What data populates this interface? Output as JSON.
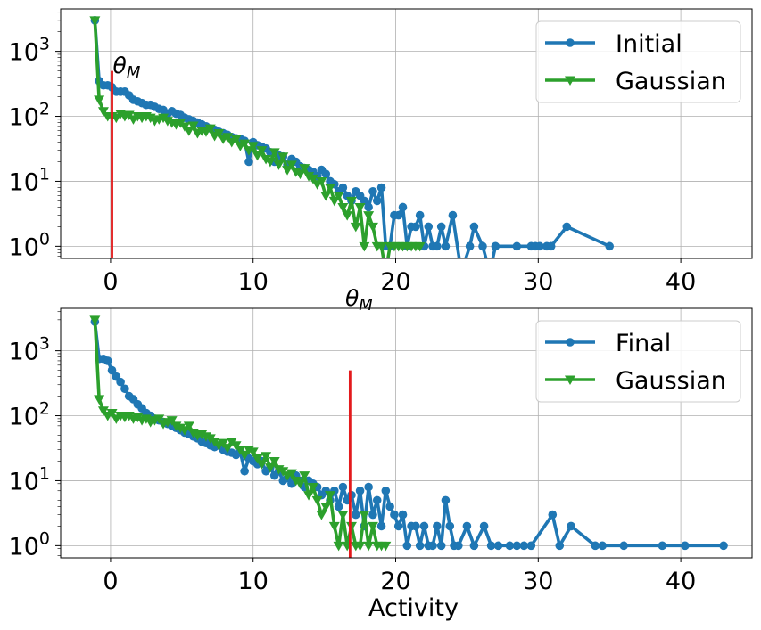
{
  "chart_data": [
    {
      "type": "line",
      "panel": "top",
      "xlabel": "",
      "ylabel": "",
      "yscale": "log",
      "xlim": [
        -3.5,
        45
      ],
      "ylim": [
        0.65,
        4500
      ],
      "xticks": [
        0,
        10,
        20,
        30,
        40
      ],
      "xtick_labels": [
        "0",
        "10",
        "20",
        "30",
        "40"
      ],
      "yticks": [
        1,
        10,
        100,
        1000
      ],
      "ytick_base": "10",
      "ytick_exponents": [
        "0",
        "1",
        "2",
        "3"
      ],
      "grid": true,
      "legend_position": "top-right",
      "vline": {
        "x": 0.1,
        "y_max": 500,
        "color": "#e31a1c",
        "label_base": "θ",
        "label_sub": "M"
      },
      "series": [
        {
          "name": "Initial",
          "color": "#1f77b4",
          "marker": "circle",
          "x": [
            -1.1,
            -0.8,
            -0.5,
            -0.2,
            0.1,
            0.4,
            0.7,
            1.0,
            1.3,
            1.6,
            1.9,
            2.2,
            2.5,
            2.8,
            3.1,
            3.4,
            3.7,
            4.0,
            4.3,
            4.6,
            4.9,
            5.2,
            5.5,
            5.8,
            6.1,
            6.4,
            6.7,
            7.0,
            7.3,
            7.6,
            7.9,
            8.2,
            8.5,
            8.8,
            9.1,
            9.4,
            9.7,
            10.0,
            10.3,
            10.6,
            10.9,
            11.2,
            11.5,
            11.8,
            12.1,
            12.4,
            12.7,
            13.0,
            13.3,
            13.6,
            13.9,
            14.2,
            14.5,
            14.8,
            15.1,
            15.4,
            15.7,
            16.0,
            16.3,
            16.6,
            16.9,
            17.2,
            17.5,
            17.8,
            18.1,
            18.4,
            18.7,
            19.0,
            19.3,
            19.6,
            19.9,
            20.2,
            20.5,
            20.8,
            21.1,
            21.4,
            21.7,
            22.0,
            22.3,
            22.6,
            22.9,
            23.2,
            23.5,
            24.0,
            24.6,
            25.2,
            25.5,
            26.1,
            26.6,
            27.0,
            28.5,
            29.5,
            29.8,
            30.1,
            30.6,
            30.9,
            32.0,
            35.0
          ],
          "y": [
            3000,
            350,
            300,
            300,
            280,
            240,
            240,
            240,
            210,
            180,
            170,
            160,
            150,
            150,
            140,
            130,
            125,
            110,
            120,
            110,
            105,
            95,
            90,
            85,
            80,
            75,
            70,
            65,
            62,
            58,
            55,
            52,
            48,
            46,
            45,
            42,
            20,
            40,
            36,
            34,
            32,
            28,
            20,
            25,
            24,
            18,
            22,
            20,
            17,
            16,
            15,
            14,
            12,
            15,
            13,
            10,
            9,
            7,
            8,
            6,
            5,
            7,
            6,
            5,
            4,
            7,
            5,
            8,
            1,
            1,
            3,
            3,
            4,
            1,
            2,
            2,
            3,
            1,
            2,
            1,
            1,
            2,
            1,
            3,
            0,
            1,
            2,
            1,
            0,
            1,
            1,
            1,
            1,
            1,
            1,
            1,
            2,
            1
          ]
        },
        {
          "name": "Gaussian",
          "color": "#2ca02c",
          "marker": "triangle-down",
          "x": [
            -1.1,
            -0.8,
            -0.5,
            -0.2,
            0.1,
            0.4,
            0.7,
            1.0,
            1.3,
            1.6,
            1.9,
            2.2,
            2.5,
            2.8,
            3.1,
            3.4,
            3.7,
            4.0,
            4.3,
            4.6,
            4.9,
            5.2,
            5.5,
            5.8,
            6.1,
            6.4,
            6.7,
            7.0,
            7.3,
            7.6,
            7.9,
            8.2,
            8.5,
            8.8,
            9.1,
            9.4,
            9.7,
            10.0,
            10.3,
            10.6,
            10.9,
            11.2,
            11.5,
            11.8,
            12.1,
            12.4,
            12.7,
            13.0,
            13.3,
            13.6,
            13.9,
            14.2,
            14.5,
            14.8,
            15.1,
            15.4,
            15.7,
            16.0,
            16.3,
            16.6,
            16.9,
            17.2,
            17.5,
            17.8,
            18.1,
            18.4,
            18.7,
            19.0,
            19.3,
            19.6,
            19.9,
            20.2,
            20.5,
            20.8,
            21.1,
            21.4,
            21.7
          ],
          "y": [
            3000,
            180,
            120,
            100,
            100,
            95,
            110,
            100,
            105,
            90,
            100,
            95,
            100,
            95,
            85,
            90,
            95,
            85,
            80,
            75,
            80,
            70,
            60,
            72,
            55,
            60,
            58,
            65,
            50,
            55,
            45,
            48,
            40,
            45,
            35,
            38,
            30,
            35,
            25,
            30,
            22,
            20,
            28,
            18,
            24,
            15,
            18,
            14,
            13,
            16,
            12,
            11,
            9,
            10,
            6,
            8,
            5,
            6,
            4,
            3,
            5,
            2,
            4,
            1,
            3,
            2,
            1,
            1,
            0,
            1,
            1,
            1,
            1,
            1,
            1,
            1,
            1
          ]
        }
      ]
    },
    {
      "type": "line",
      "panel": "bottom",
      "xlabel": "Activity",
      "ylabel": "",
      "yscale": "log",
      "xlim": [
        -3.5,
        45
      ],
      "ylim": [
        0.65,
        4500
      ],
      "xticks": [
        0,
        10,
        20,
        30,
        40
      ],
      "xtick_labels": [
        "0",
        "10",
        "20",
        "30",
        "40"
      ],
      "yticks": [
        1,
        10,
        100,
        1000
      ],
      "ytick_base": "10",
      "ytick_exponents": [
        "0",
        "1",
        "2",
        "3"
      ],
      "grid": true,
      "legend_position": "top-right",
      "vline": {
        "x": 16.8,
        "y_max": 500,
        "color": "#e31a1c",
        "label_base": "θ",
        "label_sub": "M"
      },
      "series": [
        {
          "name": "Final",
          "color": "#1f77b4",
          "marker": "circle",
          "x": [
            -1.1,
            -0.8,
            -0.5,
            -0.2,
            0.1,
            0.4,
            0.7,
            1.0,
            1.3,
            1.6,
            1.9,
            2.2,
            2.5,
            2.8,
            3.1,
            3.4,
            3.7,
            4.0,
            4.3,
            4.6,
            4.9,
            5.2,
            5.5,
            5.8,
            6.1,
            6.4,
            6.7,
            7.0,
            7.3,
            7.6,
            7.9,
            8.2,
            8.5,
            8.8,
            9.1,
            9.4,
            9.7,
            10.0,
            10.3,
            10.6,
            10.9,
            11.2,
            11.5,
            11.8,
            12.1,
            12.4,
            12.7,
            13.0,
            13.3,
            13.6,
            13.9,
            14.2,
            14.5,
            14.8,
            15.1,
            15.4,
            15.7,
            16.0,
            16.3,
            16.6,
            16.9,
            17.2,
            17.5,
            17.8,
            18.1,
            18.4,
            18.7,
            19.0,
            19.3,
            19.6,
            19.9,
            20.2,
            20.5,
            20.8,
            21.1,
            21.4,
            21.7,
            22.0,
            22.3,
            22.6,
            22.9,
            23.2,
            23.5,
            23.8,
            24.1,
            24.4,
            25.0,
            25.5,
            26.2,
            26.7,
            27.2,
            28.0,
            28.5,
            29.0,
            29.5,
            31.0,
            31.5,
            32.3,
            34.0,
            34.5,
            36.0,
            38.7,
            40.3,
            43.0
          ],
          "y": [
            2800,
            750,
            750,
            700,
            500,
            400,
            330,
            260,
            200,
            180,
            150,
            130,
            110,
            100,
            90,
            85,
            80,
            75,
            70,
            65,
            60,
            55,
            52,
            48,
            45,
            40,
            38,
            35,
            33,
            35,
            30,
            28,
            27,
            25,
            28,
            14,
            22,
            20,
            18,
            20,
            14,
            16,
            12,
            14,
            10,
            11,
            9,
            12,
            10,
            8,
            10,
            9,
            8,
            6,
            7,
            5,
            7,
            4,
            8,
            5,
            6,
            3,
            7,
            2,
            8,
            3,
            5,
            2,
            7,
            4,
            3,
            2,
            3,
            1,
            2,
            2,
            1,
            2,
            1,
            1,
            2,
            1,
            5,
            2,
            1,
            1,
            2,
            1,
            2,
            1,
            1,
            1,
            1,
            1,
            1,
            3,
            1,
            2,
            1,
            1,
            1,
            1,
            1,
            1
          ]
        },
        {
          "name": "Gaussian",
          "color": "#2ca02c",
          "marker": "triangle-down",
          "x": [
            -1.1,
            -0.8,
            -0.5,
            -0.2,
            0.1,
            0.4,
            0.7,
            1.0,
            1.3,
            1.6,
            1.9,
            2.2,
            2.5,
            2.8,
            3.1,
            3.4,
            3.7,
            4.0,
            4.3,
            4.6,
            4.9,
            5.2,
            5.5,
            5.8,
            6.1,
            6.4,
            6.7,
            7.0,
            7.3,
            7.6,
            7.9,
            8.2,
            8.5,
            8.8,
            9.1,
            9.4,
            9.7,
            10.0,
            10.3,
            10.6,
            10.9,
            11.2,
            11.5,
            11.8,
            12.1,
            12.4,
            12.7,
            13.0,
            13.3,
            13.6,
            13.9,
            14.2,
            14.5,
            14.8,
            15.1,
            15.4,
            15.7,
            16.0,
            16.3,
            16.6,
            16.9,
            17.2,
            17.5,
            17.8,
            18.1,
            18.4,
            18.7,
            19.0,
            19.3
          ],
          "y": [
            3000,
            180,
            120,
            100,
            110,
            90,
            100,
            95,
            100,
            90,
            95,
            85,
            90,
            80,
            85,
            90,
            75,
            80,
            85,
            70,
            65,
            60,
            70,
            55,
            50,
            52,
            48,
            45,
            40,
            35,
            38,
            32,
            40,
            35,
            30,
            25,
            30,
            28,
            22,
            18,
            24,
            16,
            20,
            15,
            14,
            12,
            13,
            10,
            9,
            12,
            6,
            8,
            5,
            3,
            4,
            6,
            2,
            1,
            3,
            1,
            2,
            1,
            1,
            3,
            1,
            2,
            1,
            1,
            1
          ]
        }
      ]
    }
  ]
}
